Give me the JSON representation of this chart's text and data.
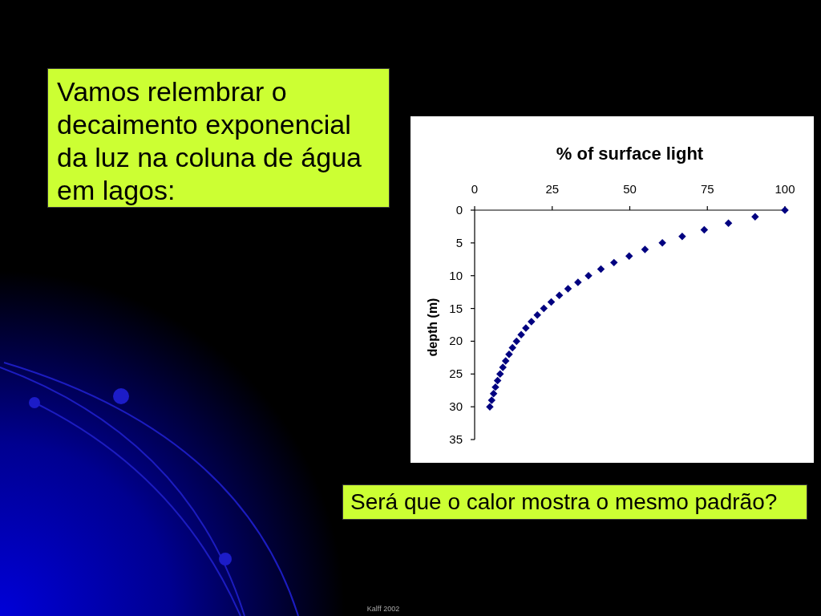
{
  "chart_data": {
    "type": "scatter",
    "xlabel": "% of surface light",
    "ylabel": "depth (m)",
    "x": [
      100,
      90.4,
      81.8,
      74.0,
      66.9,
      60.5,
      54.9,
      49.8,
      44.9,
      40.7,
      36.7,
      33.3,
      30.1,
      27.3,
      24.7,
      22.3,
      20.2,
      18.3,
      16.5,
      15.0,
      13.5,
      12.2,
      11.1,
      10.0,
      9.1,
      8.2,
      7.4,
      6.7,
      6.1,
      5.5,
      4.9
    ],
    "values": [
      0,
      1,
      2,
      3,
      4,
      5,
      6,
      7,
      8,
      9,
      10,
      11,
      12,
      13,
      14,
      15,
      16,
      17,
      18,
      19,
      20,
      21,
      22,
      23,
      24,
      25,
      26,
      27,
      28,
      29,
      30
    ],
    "color": "#000080",
    "marker": "diamond",
    "xlim": [
      0,
      100
    ],
    "xticks": [
      0,
      25,
      50,
      75,
      100
    ],
    "ylim": [
      35,
      0
    ],
    "yticks": [
      0,
      5,
      10,
      15,
      20,
      25,
      30,
      35
    ],
    "annotations": [
      "Vamos relembrar o decaimento exponencial da luz na coluna de água em lagos:",
      "Será que o calor mostra o mesmo padrão?",
      "Kalff 2002"
    ]
  }
}
